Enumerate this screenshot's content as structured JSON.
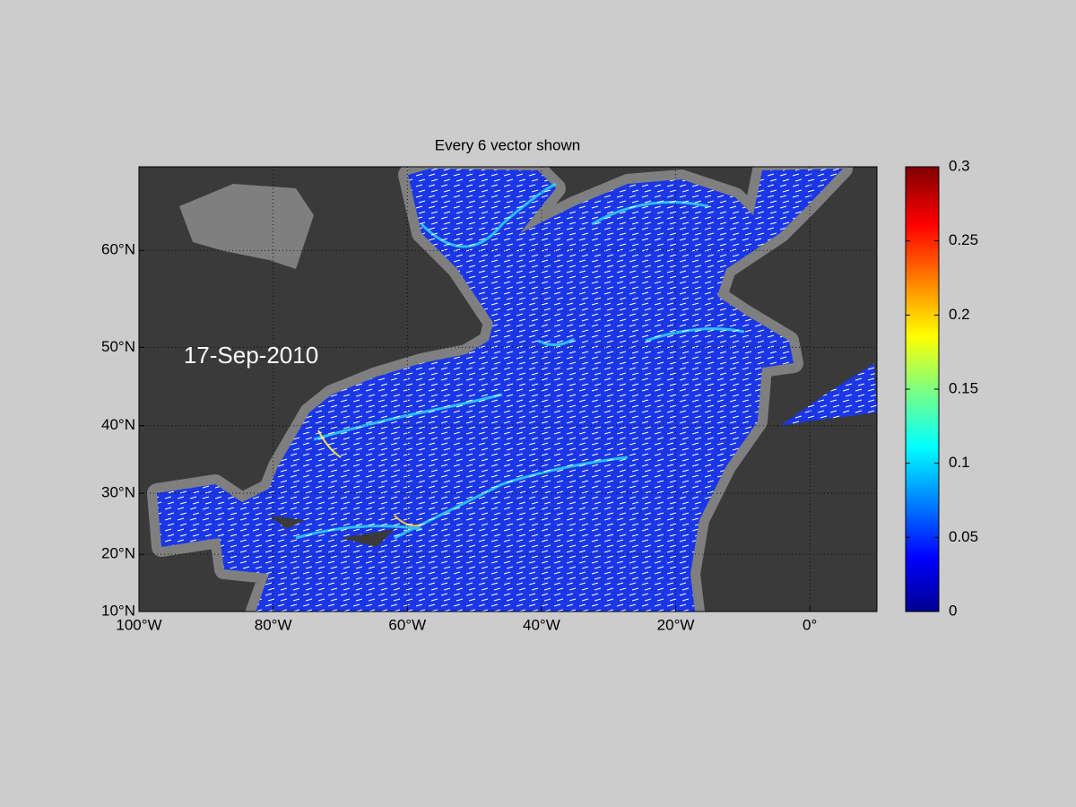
{
  "title": "Every 6 vector shown",
  "date": "17-Sep-2010",
  "axes": {
    "xlim": [
      -100,
      10
    ],
    "xticks": [
      {
        "value": -100,
        "label": "100°W"
      },
      {
        "value": -80,
        "label": "80°W"
      },
      {
        "value": -60,
        "label": "60°W"
      },
      {
        "value": -40,
        "label": "40°W"
      },
      {
        "value": -20,
        "label": "20°W"
      },
      {
        "value": 0,
        "label": "0°"
      }
    ],
    "ylim": [
      10,
      66.75
    ],
    "yticks": [
      {
        "value": 10,
        "label": "10°N"
      },
      {
        "value": 20,
        "label": "20°N"
      },
      {
        "value": 30,
        "label": "30°N"
      },
      {
        "value": 40,
        "label": "40°N"
      },
      {
        "value": 50,
        "label": "50°N"
      },
      {
        "value": 60,
        "label": "60°N"
      }
    ]
  },
  "colorbar": {
    "lim": [
      0,
      0.3
    ],
    "ticks": [
      0,
      0.05,
      0.1,
      0.15,
      0.2,
      0.25,
      0.3
    ]
  }
}
